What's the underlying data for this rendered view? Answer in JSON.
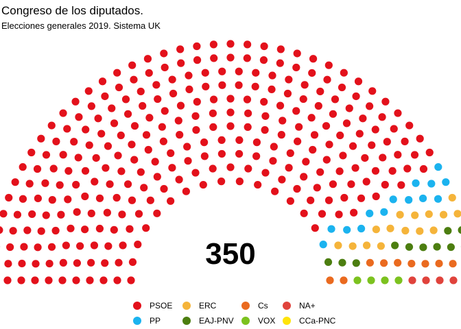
{
  "title": "Congreso de los diputados.",
  "subtitle": "Elecciones generales 2019. Sistema UK",
  "total_label": "350",
  "chart_data": {
    "type": "parliament",
    "title": "Congreso de los diputados.",
    "subtitle": "Elecciones generales 2019. Sistema UK",
    "total_seats": 350,
    "legend_position": "bottom",
    "series": [
      {
        "name": "PSOE",
        "seats": 291,
        "color": "#e3111b"
      },
      {
        "name": "PP",
        "seats": 14,
        "color": "#1bb3ef"
      },
      {
        "name": "ERC",
        "seats": 15,
        "color": "#f5b43a"
      },
      {
        "name": "EAJ-PNV",
        "seats": 11,
        "color": "#4c7e10"
      },
      {
        "name": "Cs",
        "seats": 10,
        "color": "#ea6a1f"
      },
      {
        "name": "VOX",
        "seats": 4,
        "color": "#7cc21f"
      },
      {
        "name": "NA+",
        "seats": 4,
        "color": "#e0433c"
      },
      {
        "name": "CCa-PNC",
        "seats": 1,
        "color": "#ffe40a"
      }
    ]
  },
  "legend": [
    {
      "label": "PSOE",
      "color": "#e3111b"
    },
    {
      "label": "ERC",
      "color": "#f5b43a"
    },
    {
      "label": "Cs",
      "color": "#ea6a1f"
    },
    {
      "label": "NA+",
      "color": "#e0433c"
    },
    {
      "label": "PP",
      "color": "#1bb3ef"
    },
    {
      "label": "EAJ-PNV",
      "color": "#4c7e10"
    },
    {
      "label": "VOX",
      "color": "#7cc21f"
    },
    {
      "label": "CCa-PNC",
      "color": "#ffe40a"
    }
  ]
}
